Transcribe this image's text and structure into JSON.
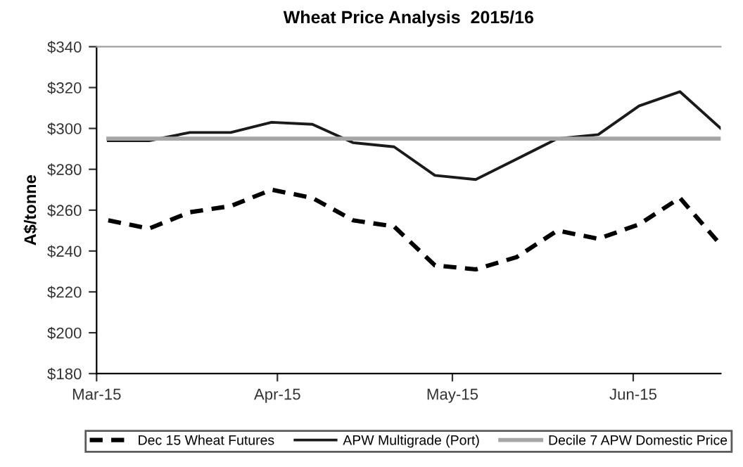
{
  "chart_data": {
    "type": "line",
    "title": "Wheat Price Analysis  2015/16",
    "ylabel": "A$/tonne",
    "x": [
      "2015-03-03",
      "2015-03-10",
      "2015-03-17",
      "2015-03-24",
      "2015-03-31",
      "2015-04-07",
      "2015-04-14",
      "2015-04-21",
      "2015-04-28",
      "2015-05-05",
      "2015-05-12",
      "2015-05-19",
      "2015-05-26",
      "2015-06-02",
      "2015-06-09",
      "2015-06-16"
    ],
    "series": [
      {
        "name": "Dec 15 Wheat Futures",
        "color": "#000000",
        "line_style": "dashed",
        "values": [
          255,
          251,
          259,
          262,
          270,
          266,
          255,
          252,
          233,
          231,
          237,
          250,
          246,
          253,
          266,
          243
        ]
      },
      {
        "name": "APW Multigrade (Port)",
        "color": "#1a1a1a",
        "line_style": "solid",
        "values": [
          294,
          294,
          298,
          298,
          303,
          302,
          293,
          291,
          277,
          275,
          285,
          295,
          297,
          311,
          318,
          300
        ]
      },
      {
        "name": "Decile 7 APW Domestic Price",
        "color": "#a6a6a6",
        "line_style": "solid",
        "values": [
          295,
          295,
          295,
          295,
          295,
          295,
          295,
          295,
          295,
          295,
          295,
          295,
          295,
          295,
          295,
          295
        ]
      }
    ],
    "xlim": [
      "2015-03-01",
      "2015-06-16"
    ],
    "xticks": [
      {
        "value": "2015-03-01",
        "label": "Mar-15"
      },
      {
        "value": "2015-04-01",
        "label": "Apr-15"
      },
      {
        "value": "2015-05-01",
        "label": "May-15"
      },
      {
        "value": "2015-06-01",
        "label": "Jun-15"
      }
    ],
    "ylim": [
      180,
      340
    ],
    "yticks": [
      {
        "value": 180,
        "label": "$180"
      },
      {
        "value": 200,
        "label": "$200"
      },
      {
        "value": 220,
        "label": "$220"
      },
      {
        "value": 240,
        "label": "$240"
      },
      {
        "value": 260,
        "label": "$260"
      },
      {
        "value": 280,
        "label": "$280"
      },
      {
        "value": 300,
        "label": "$300"
      },
      {
        "value": 320,
        "label": "$320"
      },
      {
        "value": 340,
        "label": "$340"
      }
    ],
    "grid": false,
    "legend": "bottom",
    "marker": "none"
  }
}
